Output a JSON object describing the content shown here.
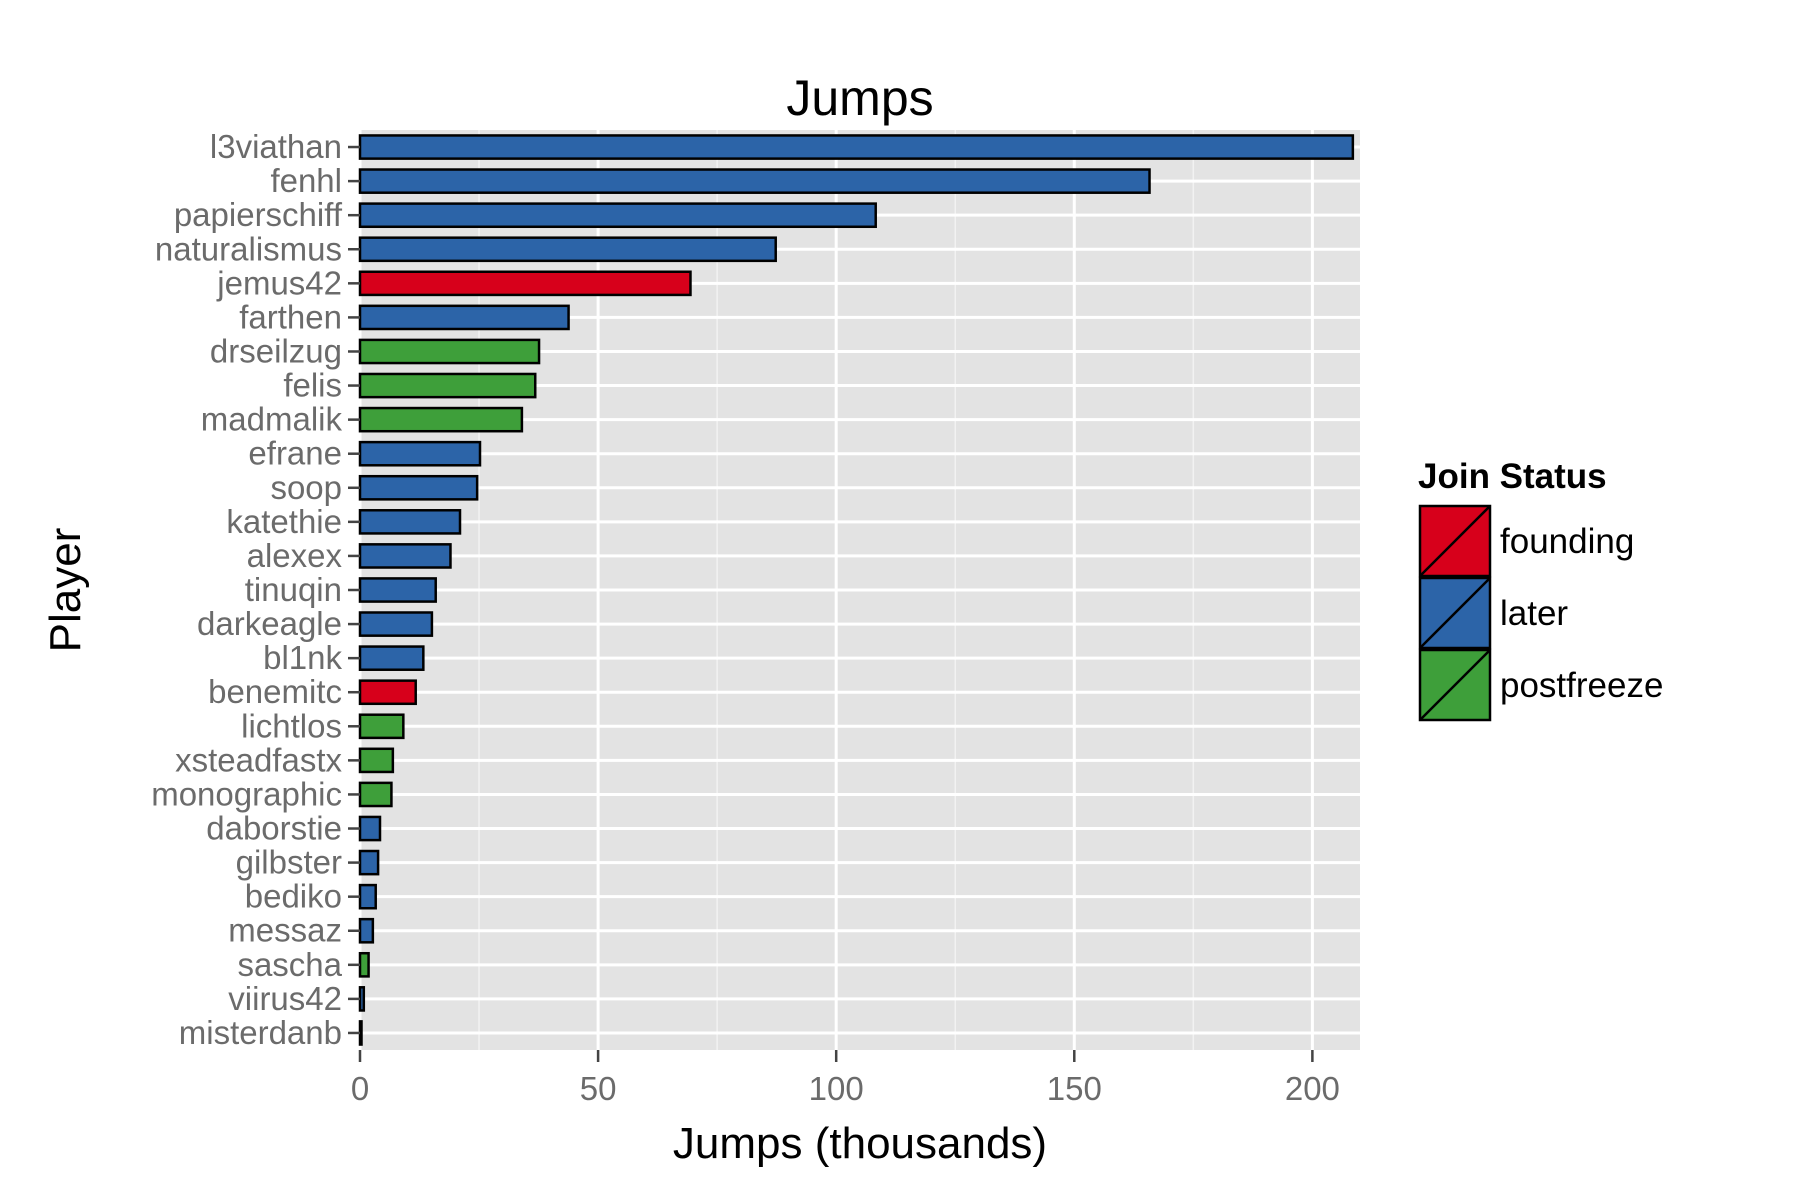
{
  "chart_data": {
    "type": "bar",
    "orientation": "horizontal",
    "title": "Jumps",
    "xlabel": "Jumps (thousands)",
    "ylabel": "Player",
    "xlim": [
      0,
      210
    ],
    "xticks": [
      0,
      50,
      100,
      150,
      200
    ],
    "grid": true,
    "legend": {
      "title": "Join Status",
      "placement": "right",
      "entries": [
        {
          "name": "founding",
          "color": "#d7001b"
        },
        {
          "name": "later",
          "color": "#2c64a8"
        },
        {
          "name": "postfreeze",
          "color": "#3e9f3a"
        }
      ]
    },
    "categories": [
      "l3viathan",
      "fenhl",
      "papierschiff",
      "naturalismus",
      "jemus42",
      "farthen",
      "drseilzug",
      "felis",
      "madmalik",
      "efrane",
      "soop",
      "katethie",
      "alexex",
      "tinuqin",
      "darkeagle",
      "bl1nk",
      "benemitc",
      "lichtlos",
      "xsteadfastx",
      "monographic",
      "daborstie",
      "gilbster",
      "bediko",
      "messaz",
      "sascha",
      "viirus42",
      "misterdanb"
    ],
    "values": [
      208.5,
      165.8,
      108.3,
      87.3,
      69.4,
      43.8,
      37.6,
      36.8,
      34.0,
      25.2,
      24.6,
      21.0,
      19.0,
      15.9,
      15.1,
      13.3,
      11.7,
      9.1,
      6.9,
      6.6,
      4.2,
      3.8,
      3.3,
      2.7,
      1.8,
      0.8,
      0.3
    ],
    "status": [
      "later",
      "later",
      "later",
      "later",
      "founding",
      "later",
      "postfreeze",
      "postfreeze",
      "postfreeze",
      "later",
      "later",
      "later",
      "later",
      "later",
      "later",
      "later",
      "founding",
      "postfreeze",
      "postfreeze",
      "postfreeze",
      "later",
      "later",
      "later",
      "later",
      "postfreeze",
      "later",
      "later"
    ]
  }
}
